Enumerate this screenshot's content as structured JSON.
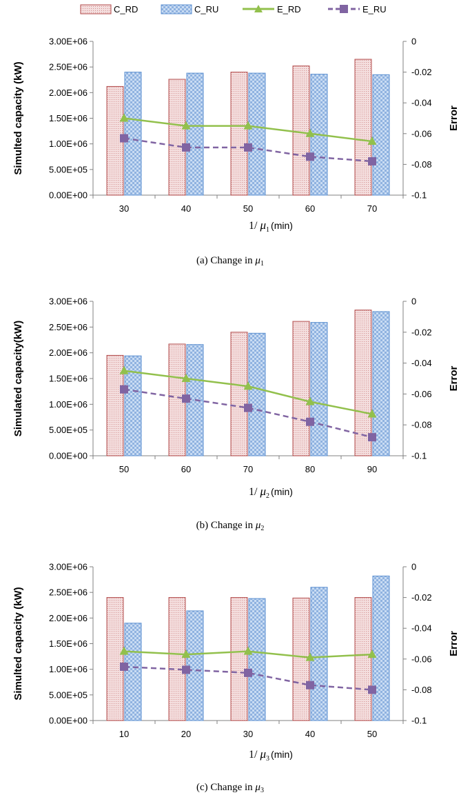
{
  "legend": {
    "c_rd": "C_RD",
    "c_ru": "C_RU",
    "e_rd": "E_RD",
    "e_ru": "E_RU"
  },
  "colors": {
    "c_rd_edge": "#b24a4a",
    "c_rd_fill": "#f4dede",
    "c_ru_edge": "#5b8fd0",
    "c_ru_fill": "#bcd3f0",
    "e_rd": "#92c04c",
    "e_ru": "#8064a2"
  },
  "chart_data": [
    {
      "type": "bar",
      "caption": "(a) Change in μ1",
      "caption_prefix": "(a) Change in ",
      "caption_mu": "μ",
      "caption_sub": "1",
      "xlabel_prefix": "1/ ",
      "xlabel_mu": "μ",
      "xlabel_sub": "1",
      "xlabel_suffix": "(min)",
      "ylabel": "Simulted capacity (kW)",
      "y2label": "Error",
      "ylim": [
        0,
        3000000
      ],
      "y2lim": [
        -0.1,
        0
      ],
      "yticks": [
        "0.00E+00",
        "5.00E+05",
        "1.00E+06",
        "1.50E+06",
        "2.00E+06",
        "2.50E+06",
        "3.00E+06"
      ],
      "y2ticks": [
        "-0.1",
        "-0.08",
        "-0.06",
        "-0.04",
        "-0.02",
        "0"
      ],
      "categories": [
        "30",
        "40",
        "50",
        "60",
        "70"
      ],
      "series": [
        {
          "name": "C_RD",
          "kind": "bar",
          "values": [
            2120000,
            2260000,
            2400000,
            2520000,
            2650000
          ]
        },
        {
          "name": "C_RU",
          "kind": "bar",
          "values": [
            2400000,
            2380000,
            2380000,
            2360000,
            2350000
          ]
        },
        {
          "name": "E_RD",
          "kind": "line",
          "axis": "right",
          "values": [
            -0.05,
            -0.055,
            -0.055,
            -0.06,
            -0.065
          ]
        },
        {
          "name": "E_RU",
          "kind": "line",
          "axis": "right",
          "values": [
            -0.063,
            -0.069,
            -0.069,
            -0.075,
            -0.078
          ]
        }
      ]
    },
    {
      "type": "bar",
      "caption": "(b) Change in μ2",
      "caption_prefix": "(b) Change in ",
      "caption_mu": "μ",
      "caption_sub": "2",
      "xlabel_prefix": "1/ ",
      "xlabel_mu": "μ",
      "xlabel_sub": "2",
      "xlabel_suffix": "(min)",
      "ylabel": "Simulated capacity(kW)",
      "y2label": "Error",
      "ylim": [
        0,
        3000000
      ],
      "y2lim": [
        -0.1,
        0
      ],
      "yticks": [
        "0.00E+00",
        "5.00E+05",
        "1.00E+06",
        "1.50E+06",
        "2.00E+06",
        "2.50E+06",
        "3.00E+06"
      ],
      "y2ticks": [
        "-0.1",
        "-0.08",
        "-0.06",
        "-0.04",
        "-0.02",
        "0"
      ],
      "categories": [
        "50",
        "60",
        "70",
        "80",
        "90"
      ],
      "series": [
        {
          "name": "C_RD",
          "kind": "bar",
          "values": [
            1950000,
            2170000,
            2400000,
            2610000,
            2830000
          ]
        },
        {
          "name": "C_RU",
          "kind": "bar",
          "values": [
            1940000,
            2160000,
            2380000,
            2590000,
            2800000
          ]
        },
        {
          "name": "E_RD",
          "kind": "line",
          "axis": "right",
          "values": [
            -0.045,
            -0.05,
            -0.055,
            -0.065,
            -0.073
          ]
        },
        {
          "name": "E_RU",
          "kind": "line",
          "axis": "right",
          "values": [
            -0.057,
            -0.063,
            -0.069,
            -0.078,
            -0.088
          ]
        }
      ]
    },
    {
      "type": "bar",
      "caption": "(c) Change in μ3",
      "caption_prefix": "(c) Change in ",
      "caption_mu": "μ",
      "caption_sub": "3",
      "xlabel_prefix": "1/ ",
      "xlabel_mu": "μ",
      "xlabel_sub": "3",
      "xlabel_suffix": "(min)",
      "ylabel": "Simulted capacity (kW)",
      "y2label": "Error",
      "ylim": [
        0,
        3000000
      ],
      "y2lim": [
        -0.1,
        0
      ],
      "yticks": [
        "0.00E+00",
        "5.00E+05",
        "1.00E+06",
        "1.50E+06",
        "2.00E+06",
        "2.50E+06",
        "3.00E+06"
      ],
      "y2ticks": [
        "-0.1",
        "-0.08",
        "-0.06",
        "-0.04",
        "-0.02",
        "0"
      ],
      "categories": [
        "10",
        "20",
        "30",
        "40",
        "50"
      ],
      "series": [
        {
          "name": "C_RD",
          "kind": "bar",
          "values": [
            2400000,
            2400000,
            2400000,
            2390000,
            2400000
          ]
        },
        {
          "name": "C_RU",
          "kind": "bar",
          "values": [
            1900000,
            2140000,
            2380000,
            2600000,
            2820000
          ]
        },
        {
          "name": "E_RD",
          "kind": "line",
          "axis": "right",
          "values": [
            -0.055,
            -0.057,
            -0.055,
            -0.059,
            -0.057
          ]
        },
        {
          "name": "E_RU",
          "kind": "line",
          "axis": "right",
          "values": [
            -0.065,
            -0.067,
            -0.069,
            -0.077,
            -0.08
          ]
        }
      ]
    }
  ]
}
